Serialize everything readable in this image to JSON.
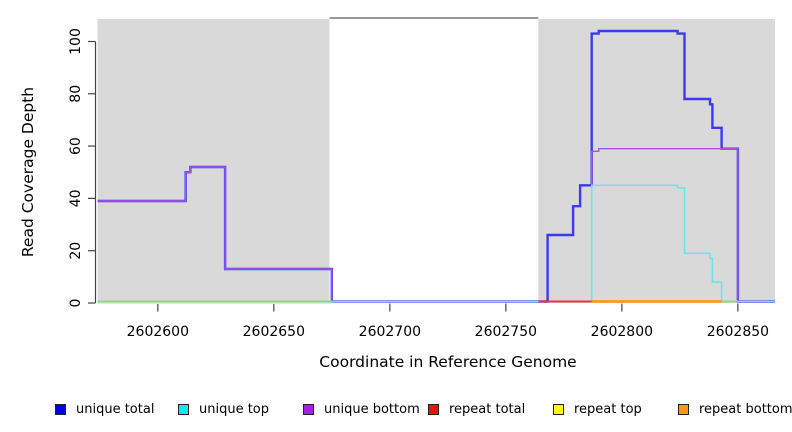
{
  "chart_data": {
    "type": "line",
    "title": "",
    "xlabel": "Coordinate in Reference Genome",
    "ylabel": "Read Coverage Depth",
    "xlim": [
      2602574,
      2602866
    ],
    "ylim": [
      0,
      108.6
    ],
    "xticks": [
      2602600,
      2602650,
      2602700,
      2602750,
      2602800,
      2602850
    ],
    "xtick_labels": [
      "2602600",
      "2602650",
      "2602700",
      "2602750",
      "2602800",
      "2602850"
    ],
    "yticks": [
      0,
      20,
      40,
      60,
      80,
      100
    ],
    "ytick_labels": [
      "0",
      "20",
      "40",
      "60",
      "80",
      "100"
    ],
    "grid": false,
    "legend_position": "bottom",
    "axis_color": "#444444",
    "shaded_region_color": "#d9d9d9",
    "gap_region_color": "#ffffff",
    "gap_top_border_color": "#787878",
    "regions": [
      {
        "name": "shaded-left",
        "x0": 2602574,
        "x1": 2602674,
        "color": "#d9d9d9"
      },
      {
        "name": "gap-white",
        "x0": 2602674,
        "x1": 2602764,
        "color": "#ffffff",
        "top_border": "#787878"
      },
      {
        "name": "shaded-right",
        "x0": 2602764,
        "x1": 2602866,
        "color": "#d9d9d9"
      }
    ],
    "series": [
      {
        "name": "unique total",
        "slug": "unique-total",
        "color": "#3a3af0",
        "width": 2.4,
        "points": [
          [
            2602574,
            39
          ],
          [
            2602612,
            50
          ],
          [
            2602614,
            52
          ],
          [
            2602629,
            13
          ],
          [
            2602675,
            0
          ],
          [
            2602768,
            26
          ],
          [
            2602779,
            37
          ],
          [
            2602782,
            45
          ],
          [
            2602787,
            103
          ],
          [
            2602790,
            104
          ],
          [
            2602824,
            103
          ],
          [
            2602827,
            78
          ],
          [
            2602838,
            76
          ],
          [
            2602839,
            67
          ],
          [
            2602843,
            59
          ],
          [
            2602850,
            0
          ],
          [
            2602866,
            0
          ]
        ]
      },
      {
        "name": "unique bottom",
        "slug": "unique-bottom",
        "color": "#aa55e0",
        "width": 1.4,
        "points": [
          [
            2602574,
            39
          ],
          [
            2602612,
            50
          ],
          [
            2602614,
            52
          ],
          [
            2602629,
            13
          ],
          [
            2602675,
            0
          ],
          [
            2602787,
            58
          ],
          [
            2602790,
            59
          ],
          [
            2602850,
            0
          ],
          [
            2602866,
            0
          ]
        ]
      },
      {
        "name": "unique top",
        "slug": "unique-top",
        "color": "#6fe3e8",
        "width": 1.6,
        "points": [
          [
            2602574,
            0
          ],
          [
            2602787,
            45
          ],
          [
            2602824,
            44
          ],
          [
            2602827,
            19
          ],
          [
            2602838,
            17
          ],
          [
            2602839,
            8
          ],
          [
            2602843,
            0
          ],
          [
            2602866,
            0
          ]
        ]
      }
    ],
    "zero_level_overlays": [
      {
        "name": "repeat-top-left",
        "x0": 2602574,
        "x1": 2602675,
        "color": "#efe9bb",
        "dy": 1.8,
        "width": 1.4
      },
      {
        "name": "unique-top-left",
        "x0": 2602574,
        "x1": 2602675,
        "color": "#8fd78f",
        "width": 2.0
      },
      {
        "name": "repeat-total-right",
        "x0": 2602764,
        "x1": 2602787,
        "color": "#ee3344",
        "width": 2.0
      },
      {
        "name": "repeat-bottom-right",
        "x0": 2602787,
        "x1": 2602843,
        "color": "#ff9414",
        "width": 2.4
      },
      {
        "name": "unique-top-right",
        "x0": 2602843,
        "x1": 2602850,
        "color": "#8fd78f",
        "width": 2.0
      }
    ],
    "legend": [
      {
        "label": "unique total",
        "color": "#0000ee"
      },
      {
        "label": "unique top",
        "color": "#00eeee"
      },
      {
        "label": "unique bottom",
        "color": "#a020f0"
      },
      {
        "label": "repeat total",
        "color": "#ee1111"
      },
      {
        "label": "repeat top",
        "color": "#ffff00"
      },
      {
        "label": "repeat bottom",
        "color": "#ff9900"
      }
    ]
  }
}
